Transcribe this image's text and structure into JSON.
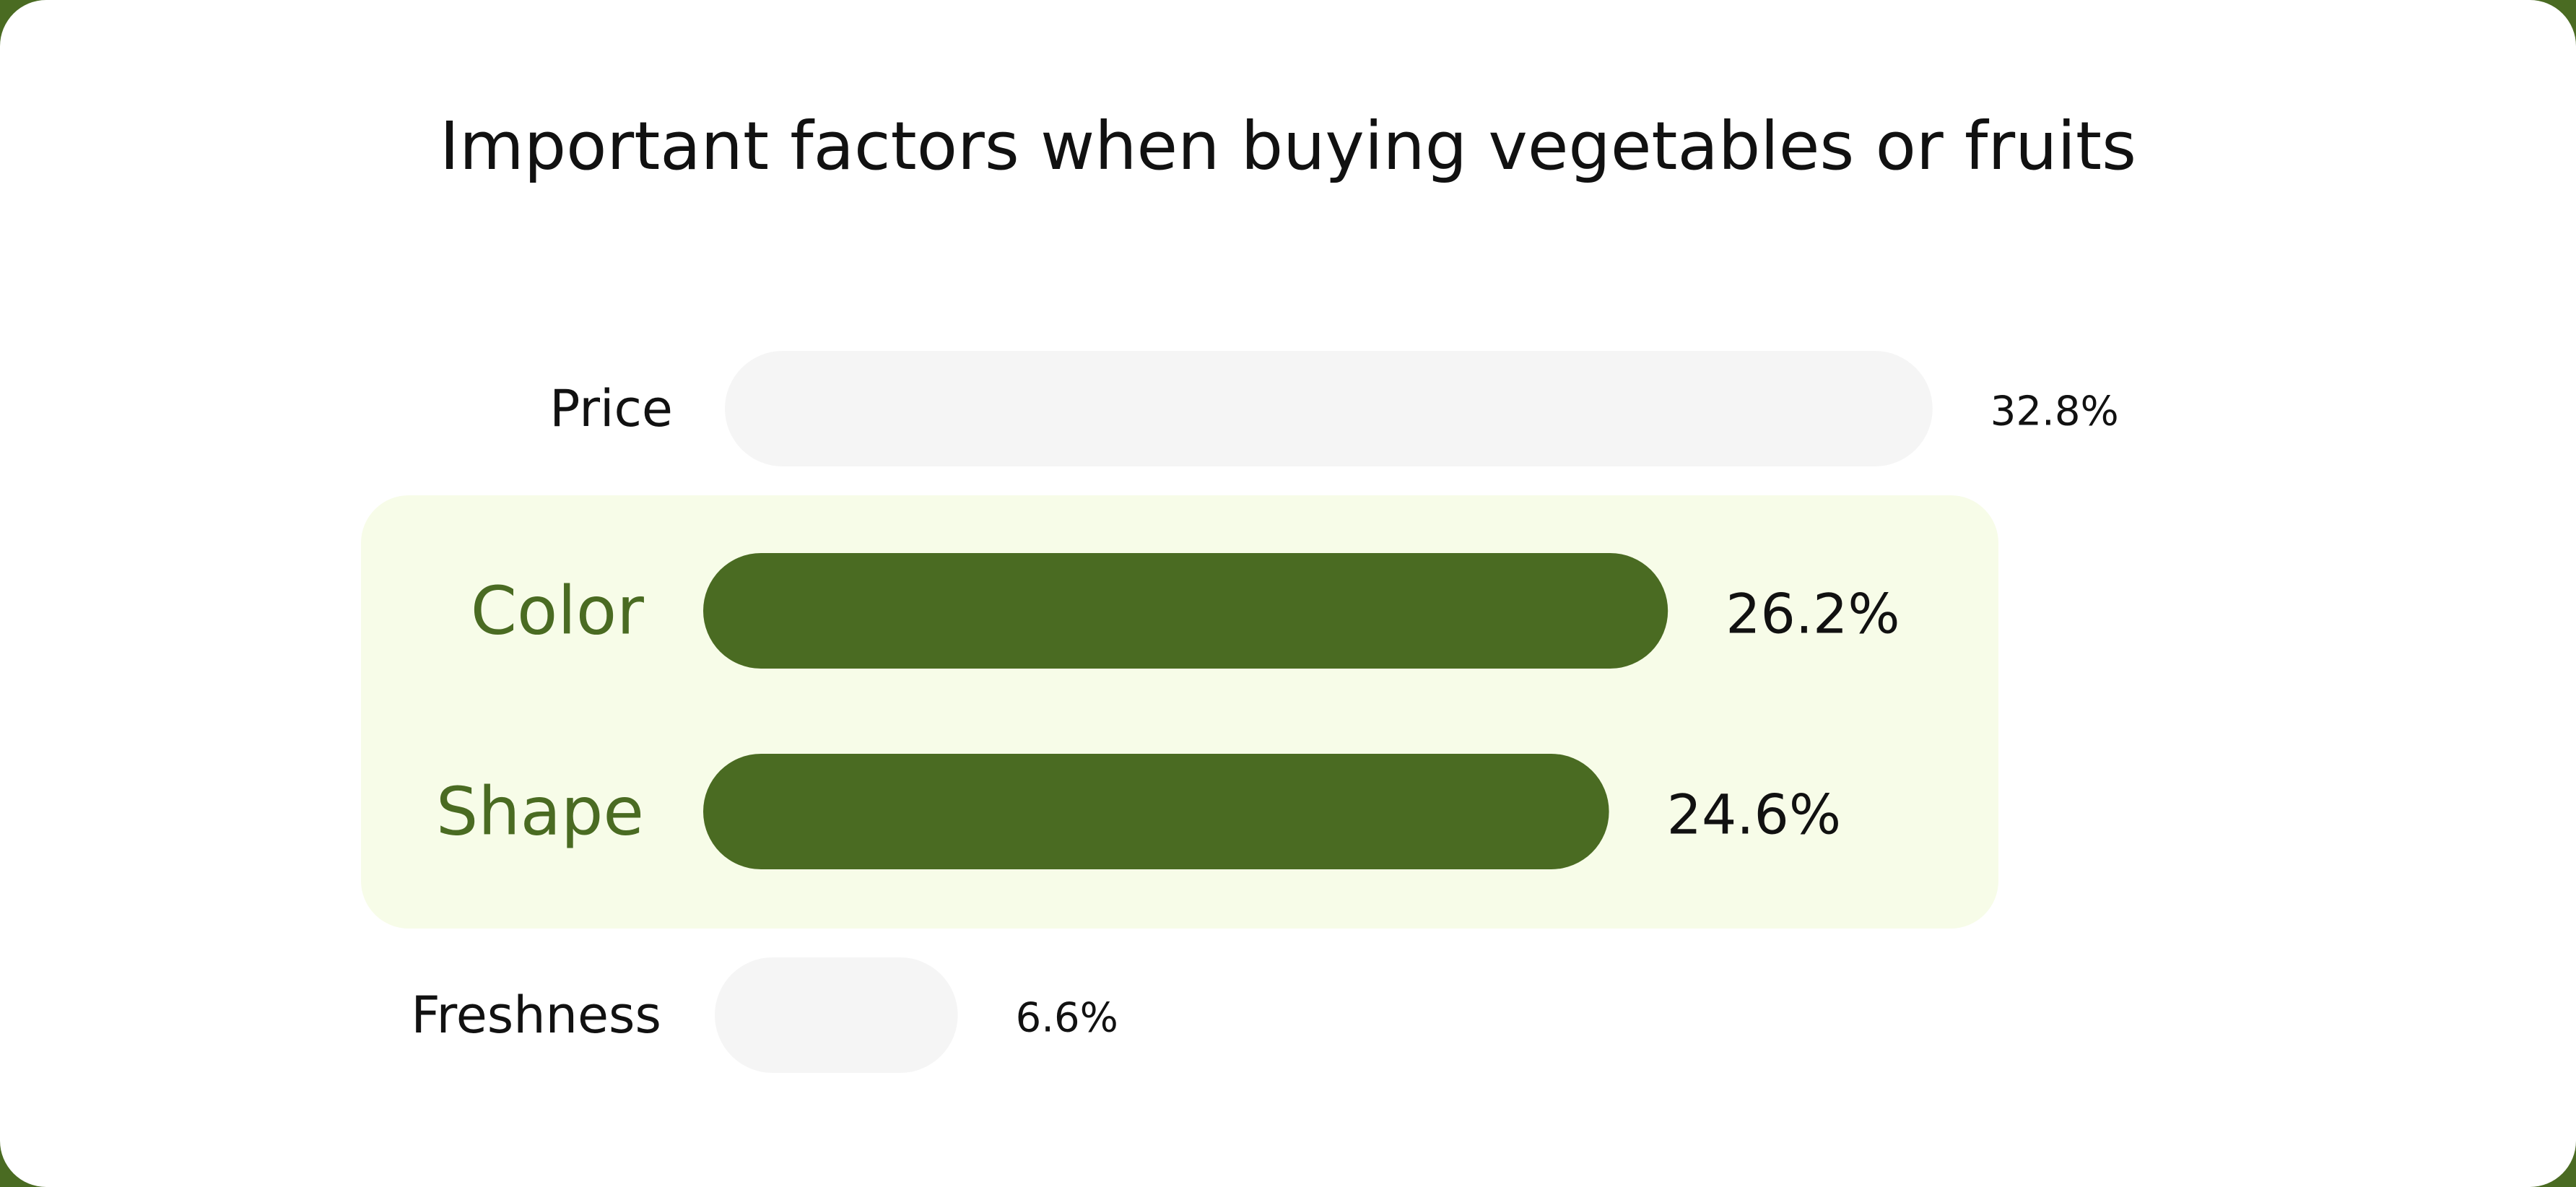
{
  "title": "Important factors when buying vegetables or fruits",
  "colors": {
    "page_background": "#4a6b22",
    "card": "#ffffff",
    "highlight_bar": "#4a6b22",
    "highlight_label": "#4a6b22",
    "highlight_panel": "#f7fce8",
    "muted_bar": "#f5f5f5",
    "text": "#111111"
  },
  "chart_data": {
    "type": "bar",
    "orientation": "horizontal",
    "title": "Important factors when buying vegetables or fruits",
    "xlabel": "",
    "ylabel": "",
    "grid": false,
    "legend": "none",
    "categories": [
      "Price",
      "Color",
      "Shape",
      "Freshness"
    ],
    "values": [
      32.8,
      26.2,
      24.6,
      6.6
    ],
    "value_labels": [
      "32.8%",
      "26.2%",
      "24.6%",
      "6.6%"
    ],
    "highlighted": [
      "Color",
      "Shape"
    ]
  }
}
